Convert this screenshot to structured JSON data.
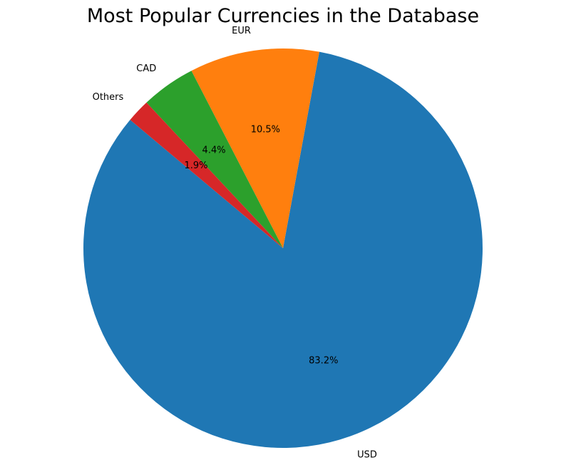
{
  "chart_data": {
    "type": "pie",
    "title": "Most Popular Currencies in the Database",
    "categories": [
      "USD",
      "EUR",
      "CAD",
      "Others"
    ],
    "values": [
      83.2,
      10.5,
      4.4,
      1.9
    ],
    "value_labels": [
      "83.2%",
      "10.5%",
      "4.4%",
      "1.9%"
    ],
    "colors": [
      "#1f77b4",
      "#ff7f0e",
      "#2ca02c",
      "#d62728"
    ],
    "start_angle_degrees": 140,
    "direction": "counterclockwise",
    "legend": "none"
  }
}
